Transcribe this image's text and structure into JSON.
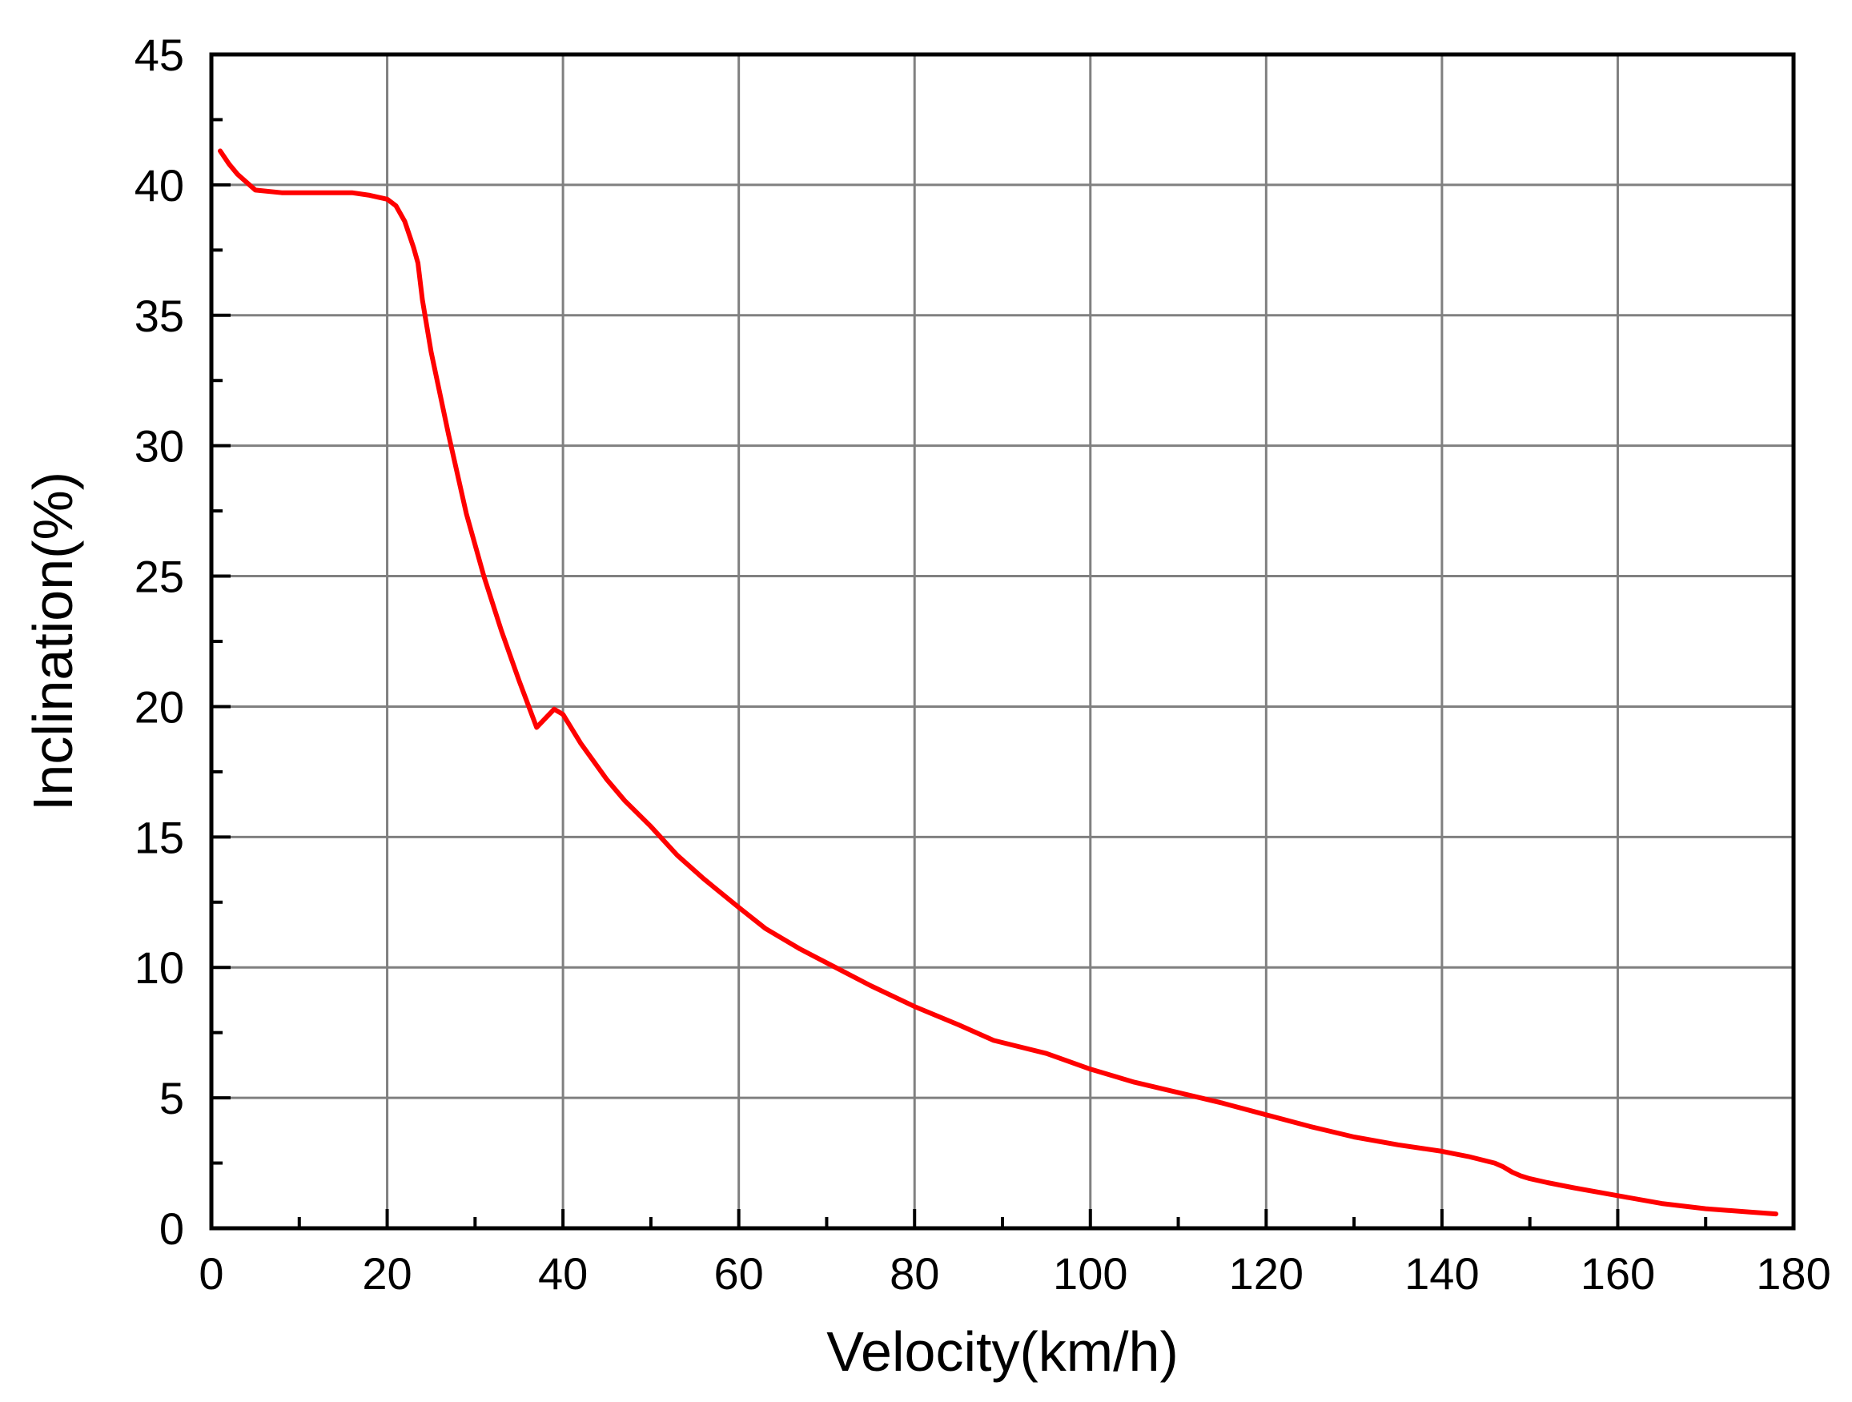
{
  "chart_data": {
    "type": "line",
    "title": "",
    "xlabel": "Velocity(km/h)",
    "ylabel": "Inclination(%)",
    "xlim": [
      0,
      180
    ],
    "ylim": [
      0,
      45
    ],
    "x_ticks": [
      0,
      20,
      40,
      60,
      80,
      100,
      120,
      140,
      160,
      180
    ],
    "y_ticks": [
      0,
      5,
      10,
      15,
      20,
      25,
      30,
      35,
      40,
      45
    ],
    "x_minor_step": 10,
    "y_minor_step": 2.5,
    "grid": true,
    "legend": "none",
    "series": [
      {
        "color": "#ff0000",
        "x": [
          1,
          2,
          3,
          4,
          5,
          8,
          12,
          16,
          18,
          20,
          21,
          22,
          23,
          23.5,
          24,
          25,
          27,
          29,
          31,
          33,
          35,
          37,
          39,
          40,
          42,
          45,
          47,
          50,
          53,
          56,
          60,
          63,
          67,
          71,
          75,
          80,
          85,
          89,
          95,
          100,
          105,
          110,
          115,
          120,
          125,
          130,
          135,
          140,
          143,
          146,
          147,
          148,
          149,
          150,
          152,
          155,
          160,
          165,
          170,
          175,
          178
        ],
        "y": [
          41.3,
          40.8,
          40.4,
          40.1,
          39.8,
          39.7,
          39.7,
          39.7,
          39.6,
          39.45,
          39.2,
          38.6,
          37.6,
          37.0,
          35.6,
          33.6,
          30.4,
          27.4,
          25.0,
          22.9,
          21.0,
          19.2,
          19.9,
          19.7,
          18.6,
          17.2,
          16.4,
          15.4,
          14.3,
          13.4,
          12.3,
          11.5,
          10.7,
          10.0,
          9.3,
          8.5,
          7.8,
          7.2,
          6.7,
          6.1,
          5.6,
          5.2,
          4.8,
          4.35,
          3.9,
          3.5,
          3.2,
          2.95,
          2.75,
          2.5,
          2.35,
          2.15,
          2.0,
          1.9,
          1.75,
          1.55,
          1.25,
          0.95,
          0.75,
          0.62,
          0.55
        ]
      }
    ]
  }
}
